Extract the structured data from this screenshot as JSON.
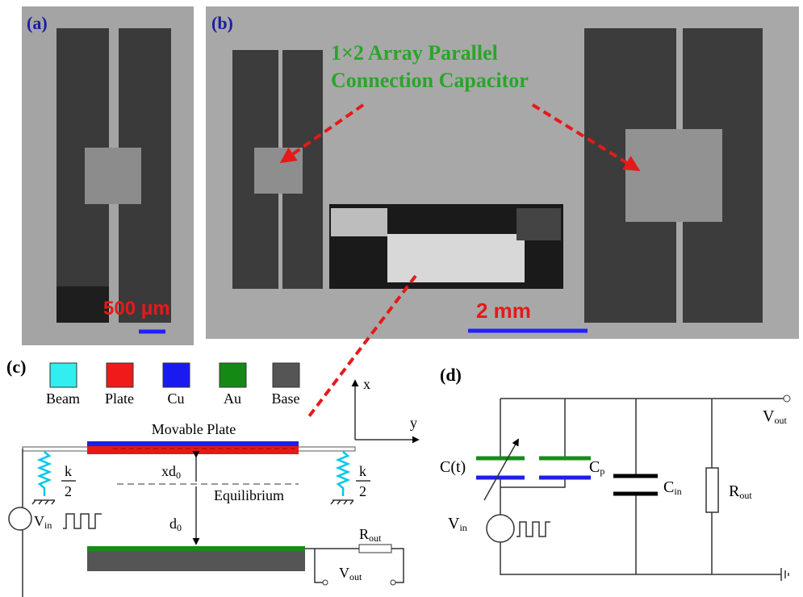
{
  "panel_a": {
    "label": "(a)",
    "scale_bar": "500 μm"
  },
  "panel_b": {
    "label": "(b)",
    "annotation_line1": "1×2 Array Parallel",
    "annotation_line2": "Connection Capacitor",
    "scale_bar": "2 mm"
  },
  "panel_c": {
    "label": "(c)",
    "legend": [
      "Beam",
      "Plate",
      "Cu",
      "Au",
      "Base"
    ],
    "axis_x": "x",
    "axis_y": "y",
    "movable_plate": "Movable Plate",
    "equilibrium": "Equilibrium",
    "spring_num": "k",
    "spring_den": "2",
    "xd0": {
      "main": "xd",
      "sub": "0"
    },
    "d0": {
      "main": "d",
      "sub": "0"
    },
    "vin": {
      "main": "V",
      "sub": "in"
    },
    "rout": {
      "main": "R",
      "sub": "out"
    },
    "vout": {
      "main": "V",
      "sub": "out"
    }
  },
  "panel_d": {
    "label": "(d)",
    "ct": "C(t)",
    "cp": {
      "main": "C",
      "sub": "p"
    },
    "cin": {
      "main": "C",
      "sub": "in"
    },
    "rout": {
      "main": "R",
      "sub": "out"
    },
    "vin": {
      "main": "V",
      "sub": "in"
    },
    "vout": {
      "main": "V",
      "sub": "out"
    }
  }
}
